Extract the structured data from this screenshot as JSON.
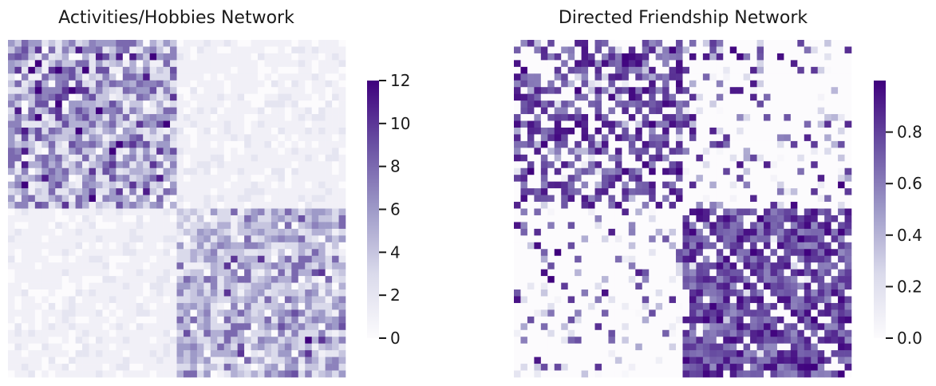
{
  "chart_data": [
    {
      "type": "heatmap",
      "title": "Activities/Hobbies Network",
      "xlabel": "",
      "ylabel": "",
      "n": 50,
      "block_size": 25,
      "description_of_values": "Symmetric 50x50 matrix, two 25-node communities; within-block cells mostly 2-12, between-block cells mostly 0-3",
      "block_means": [
        [
          5.0,
          1.0
        ],
        [
          1.0,
          4.0
        ]
      ],
      "colorbar": {
        "min": 0,
        "max": 12,
        "ticks": [
          0,
          2,
          4,
          6,
          8,
          10,
          12
        ]
      },
      "colormap": "Purples",
      "grid": false
    },
    {
      "type": "heatmap",
      "title": "Directed Friendship Network",
      "xlabel": "",
      "ylabel": "",
      "n": 50,
      "block_size": 25,
      "description_of_values": "Asymmetric 50x50 matrix, two 25-node communities; zero diagonal; block 1 within-probability moderate, block 2 within-probability high",
      "block_means": [
        [
          0.55,
          0.12
        ],
        [
          0.1,
          0.85
        ]
      ],
      "colorbar": {
        "min": 0,
        "max": 1,
        "ticks": [
          0.0,
          0.2,
          0.4,
          0.6,
          0.8
        ]
      },
      "colormap": "Purples",
      "grid": false
    }
  ],
  "colors": {
    "cmap_low": "#fcfbfd",
    "cmap_mid": "#9e9ac8",
    "cmap_high": "#3f007d"
  }
}
